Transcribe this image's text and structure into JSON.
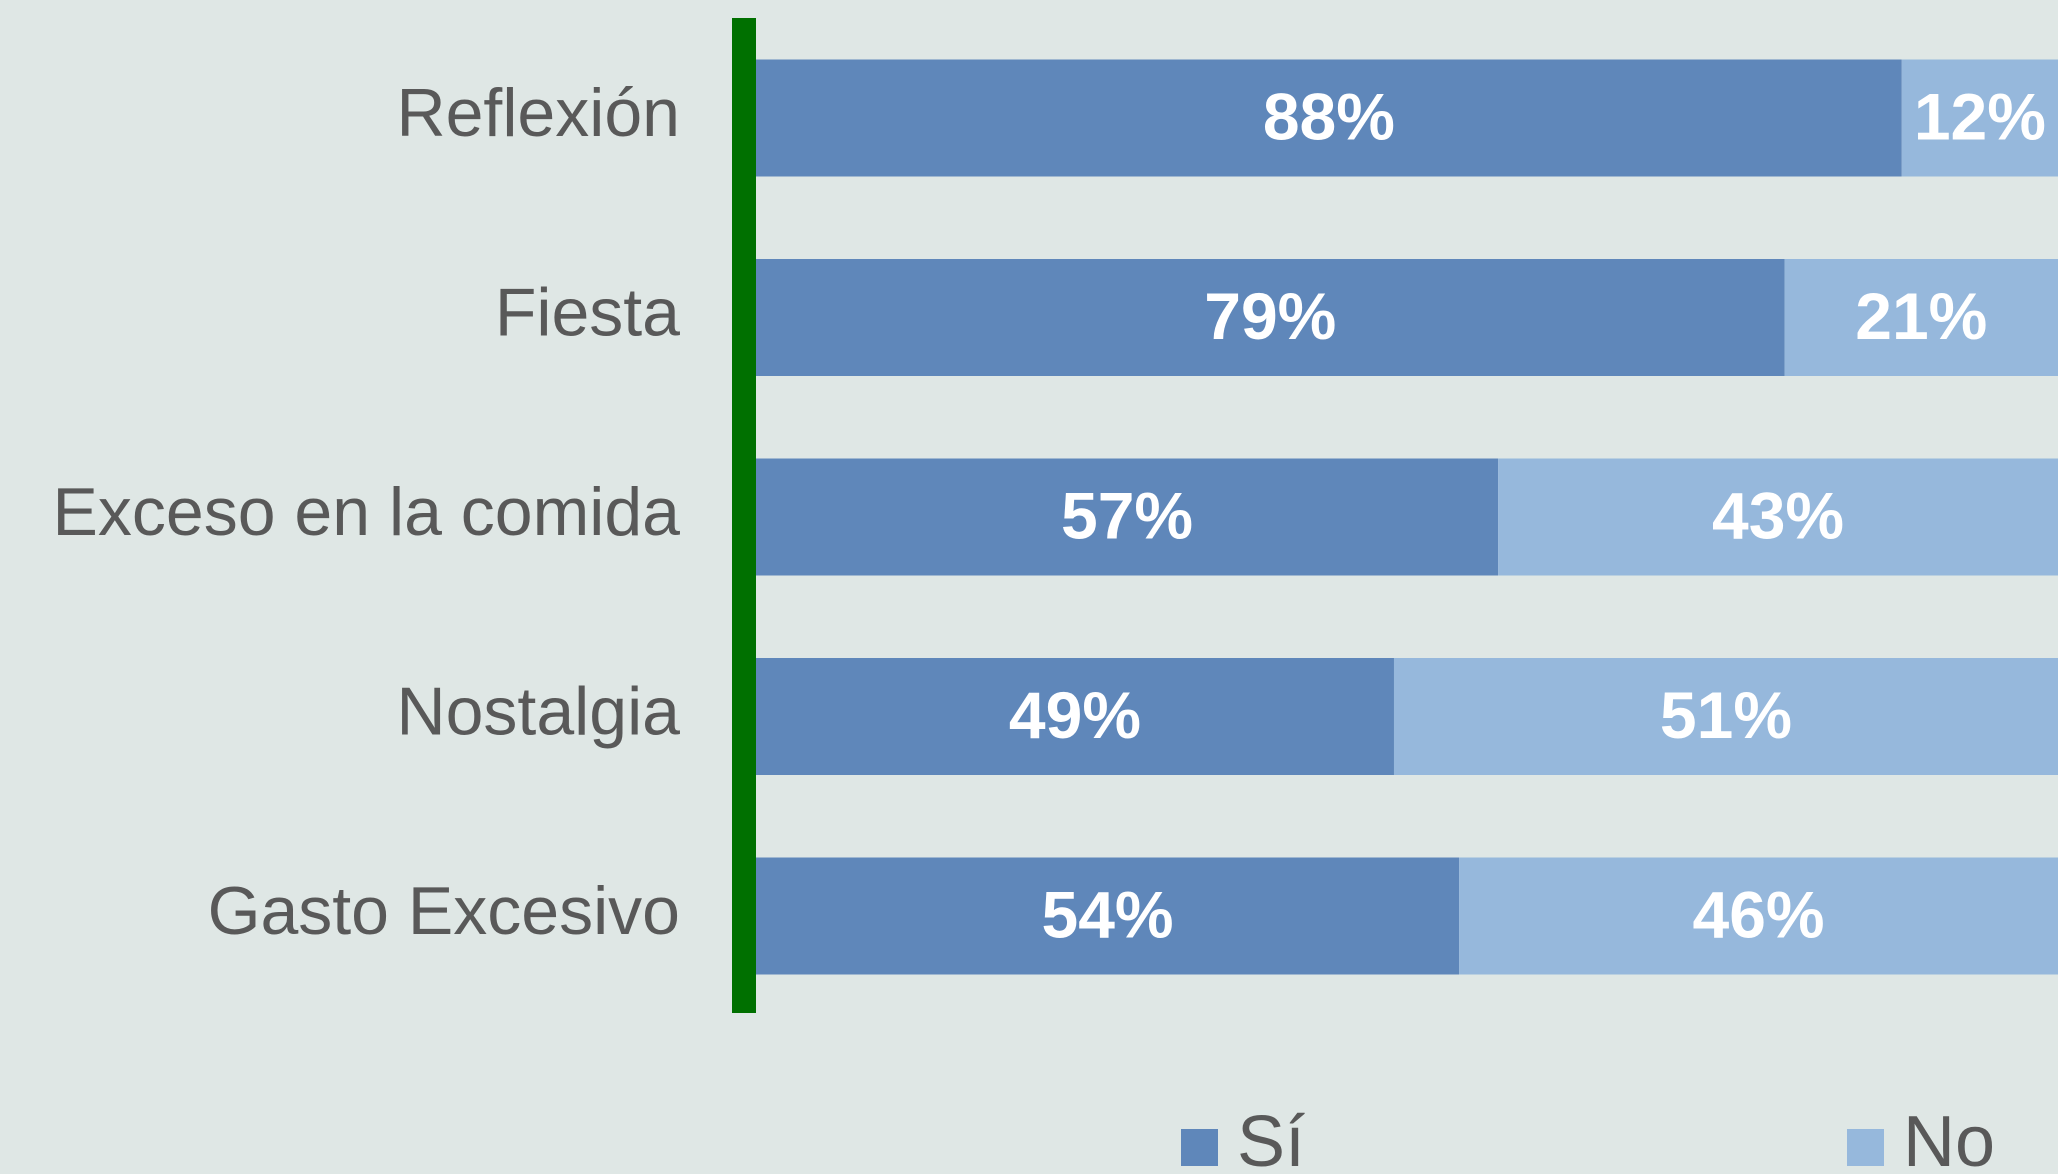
{
  "chart_data": {
    "type": "stacked-barh",
    "categories": [
      "Reflexión",
      "Fiesta",
      "Exceso en la comida",
      "Nostalgia",
      "Gasto Excesivo"
    ],
    "series": [
      {
        "name": "Sí",
        "color": "#5f87ba",
        "values": [
          88,
          79,
          57,
          49,
          54
        ],
        "value_labels": [
          "88%",
          "79%",
          "57%",
          "49%",
          "54%"
        ]
      },
      {
        "name": "No",
        "color": "#96b8dc",
        "values": [
          12,
          21,
          43,
          51,
          46
        ],
        "value_labels": [
          "12%",
          "21%",
          "43%",
          "51%",
          "46%"
        ]
      }
    ],
    "xlim": [
      0,
      100
    ],
    "axis_color": "#007000"
  }
}
